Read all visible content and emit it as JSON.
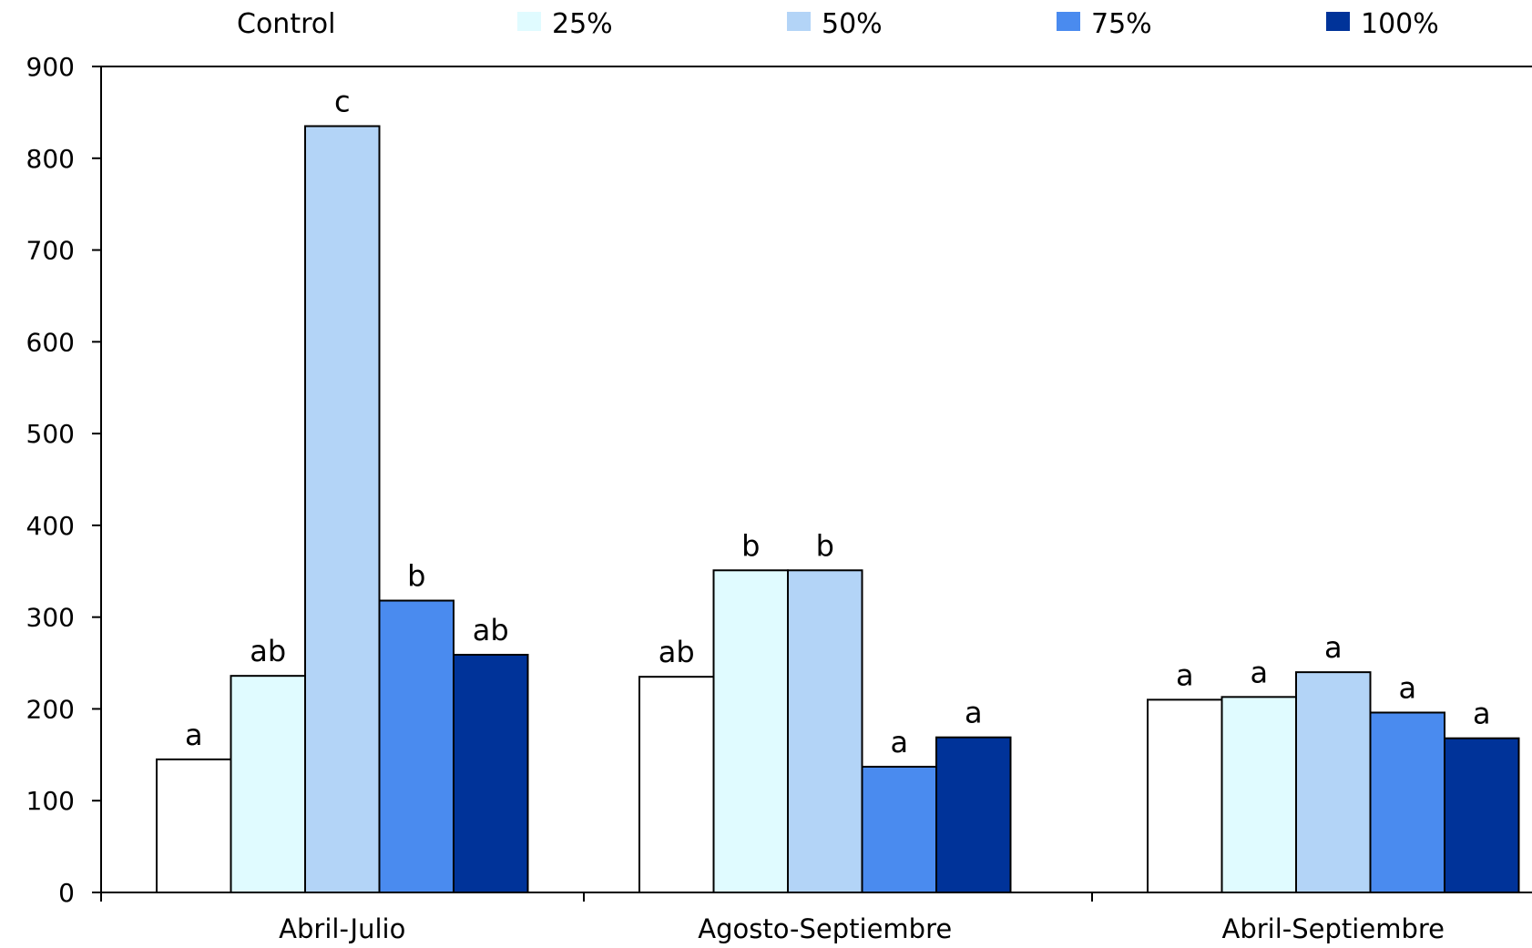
{
  "chart_data": {
    "type": "bar",
    "title": "",
    "xlabel": "",
    "ylabel": "",
    "ylim": [
      0,
      900
    ],
    "yticks": [
      0,
      100,
      200,
      300,
      400,
      500,
      600,
      700,
      800,
      900
    ],
    "ytick_labels": [
      "0",
      "100",
      "200",
      "300",
      "400",
      "500",
      "600",
      "700",
      "800",
      "900"
    ],
    "categories": [
      "Abril-Julio",
      "Agosto-Septiembre",
      "Abril-Septiembre"
    ],
    "legend_position": "top",
    "grid": false,
    "series": [
      {
        "name": "Control",
        "color": "#ffffff",
        "values": [
          145,
          235,
          210
        ],
        "labels": [
          "a",
          "ab",
          "a"
        ]
      },
      {
        "name": "25%",
        "color": "#e0fbff",
        "values": [
          236,
          351,
          213
        ],
        "labels": [
          "ab",
          "b",
          "a"
        ]
      },
      {
        "name": "50%",
        "color": "#b3d4f7",
        "values": [
          835,
          351,
          240
        ],
        "labels": [
          "c",
          "b",
          "a"
        ]
      },
      {
        "name": "75%",
        "color": "#4a8bef",
        "values": [
          318,
          137,
          196
        ],
        "labels": [
          "b",
          "a",
          "a"
        ]
      },
      {
        "name": "100%",
        "color": "#003399",
        "values": [
          259,
          169,
          168
        ],
        "labels": [
          "ab",
          "a",
          "a"
        ]
      }
    ]
  }
}
